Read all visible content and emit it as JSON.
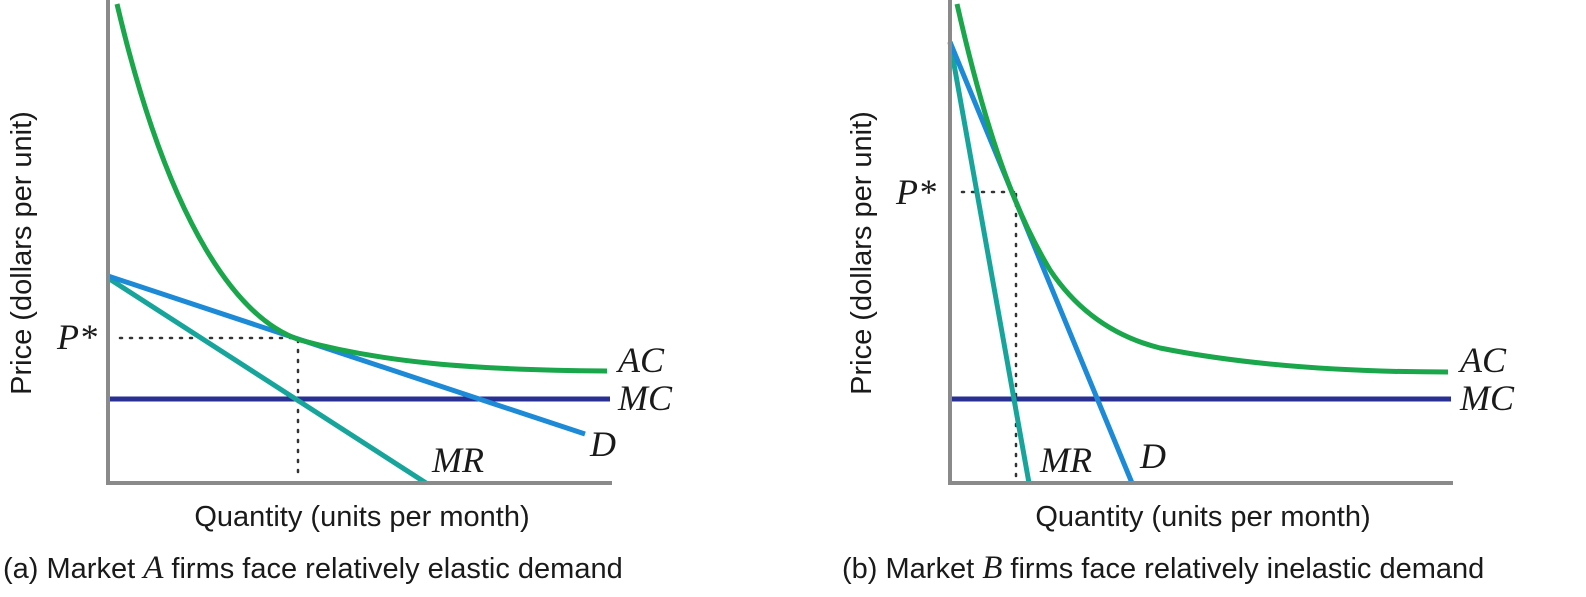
{
  "colors": {
    "ac": "#1aa64a",
    "mr": "#17a59b",
    "d": "#1c8ad6",
    "mc": "#2a2f93",
    "axis": "#8a8a8a"
  },
  "panels": [
    {
      "id": "a",
      "ylabel": "Price (dollars per unit)",
      "xlabel": "Quantity (units per month)",
      "p_star": "P*",
      "curves": {
        "ac": "AC",
        "mc": "MC",
        "d": "D",
        "mr": "MR"
      },
      "caption": {
        "before": "(a) Market ",
        "market": "A",
        "after": " firms face relatively elastic demand"
      }
    },
    {
      "id": "b",
      "ylabel": "Price (dollars per unit)",
      "xlabel": "Quantity (units per month)",
      "p_star": "P*",
      "curves": {
        "ac": "AC",
        "mc": "MC",
        "d": "D",
        "mr": "MR"
      },
      "caption": {
        "before": "(b) Market ",
        "market": "B",
        "after": " firms face relatively inelastic demand"
      }
    }
  ]
}
